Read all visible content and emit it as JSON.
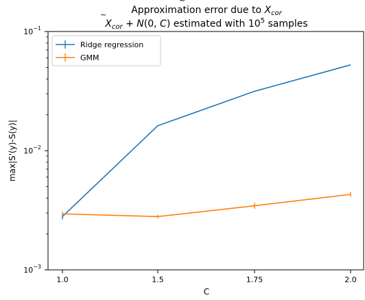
{
  "chart_data": {
    "type": "line",
    "title_line1_prefix": "Approximation error due to ",
    "title_line2_suffix": " estimated with ",
    "title_line2_samples_base": "10",
    "title_line2_samples_exp": "5",
    "title_line2_samples_word": " samples",
    "xlabel": "C",
    "ylabel": "max|S'(y)-S(y)|",
    "x_tick_labels": [
      "1.0",
      "1.5",
      "1.75",
      "2.0"
    ],
    "y_scale": "log",
    "y_tick_labels": [
      {
        "base": "10",
        "exp": "−1",
        "value": 0.1
      },
      {
        "base": "10",
        "exp": "−2",
        "value": 0.01
      },
      {
        "base": "10",
        "exp": "−3",
        "value": 0.001
      }
    ],
    "ylim": [
      0.001,
      0.1
    ],
    "legend_position": "top-left",
    "grid": false,
    "series": [
      {
        "name": "Ridge regression",
        "color": "#1f77b4",
        "points": [
          {
            "x_index": 0,
            "y": 0.0028,
            "err": 0.00015
          },
          {
            "x_index": 1,
            "y": 0.0162,
            "err": 0.0
          },
          {
            "x_index": 2,
            "y": 0.0315,
            "err": 0.0
          },
          {
            "x_index": 3,
            "y": 0.0525,
            "err": 0.0
          }
        ]
      },
      {
        "name": "GMM",
        "color": "#ff7f0e",
        "points": [
          {
            "x_index": 0,
            "y": 0.00295,
            "err": 0.00012
          },
          {
            "x_index": 1,
            "y": 0.0028,
            "err": 0.0001
          },
          {
            "x_index": 2,
            "y": 0.00345,
            "err": 0.0002
          },
          {
            "x_index": 3,
            "y": 0.0043,
            "err": 0.0002
          }
        ]
      }
    ]
  }
}
